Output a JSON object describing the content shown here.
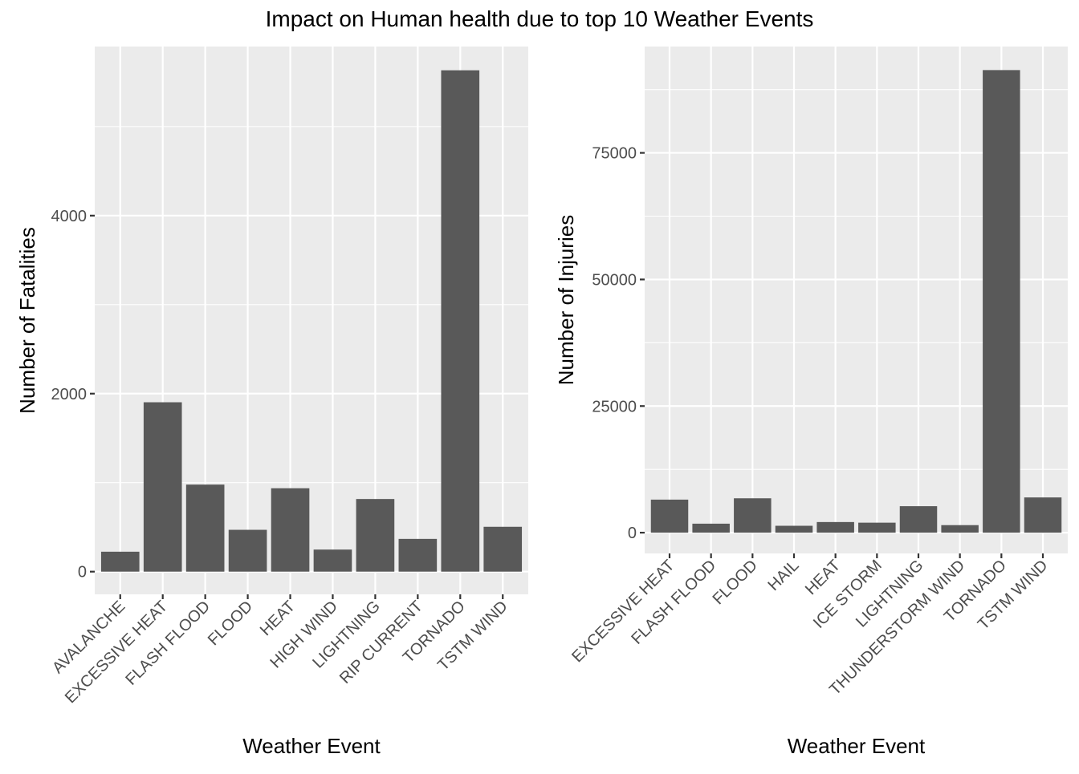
{
  "title": "Impact on Human health due to top 10 Weather Events",
  "chart_data": [
    {
      "type": "bar",
      "xlabel": "Weather Event",
      "ylabel": "Number of Fatalities",
      "categories": [
        "AVALANCHE",
        "EXCESSIVE HEAT",
        "FLASH FLOOD",
        "FLOOD",
        "HEAT",
        "HIGH WIND",
        "LIGHTNING",
        "RIP CURRENT",
        "TORNADO",
        "TSTM WIND"
      ],
      "values": [
        224,
        1903,
        978,
        470,
        937,
        248,
        816,
        368,
        5633,
        504
      ],
      "ylim": [
        -255,
        5900
      ],
      "yticks": [
        0,
        2000,
        4000
      ],
      "yticklabels": [
        "0",
        "2000",
        "4000"
      ],
      "grid": true,
      "bar_color": "#595959",
      "panel_color": "#ebebeb"
    },
    {
      "type": "bar",
      "xlabel": "Weather Event",
      "ylabel": "Number of Injuries",
      "categories": [
        "EXCESSIVE HEAT",
        "FLASH FLOOD",
        "FLOOD",
        "HAIL",
        "HEAT",
        "ICE STORM",
        "LIGHTNING",
        "THUNDERSTORM WIND",
        "TORNADO",
        "TSTM WIND"
      ],
      "values": [
        6525,
        1777,
        6789,
        1361,
        2100,
        1975,
        5230,
        1488,
        91346,
        6957
      ],
      "ylim": [
        -4100,
        96000
      ],
      "yticks": [
        0,
        25000,
        50000,
        75000
      ],
      "yticklabels": [
        "0",
        "25000",
        "50000",
        "75000"
      ],
      "grid": true,
      "bar_color": "#595959",
      "panel_color": "#ebebeb"
    }
  ]
}
